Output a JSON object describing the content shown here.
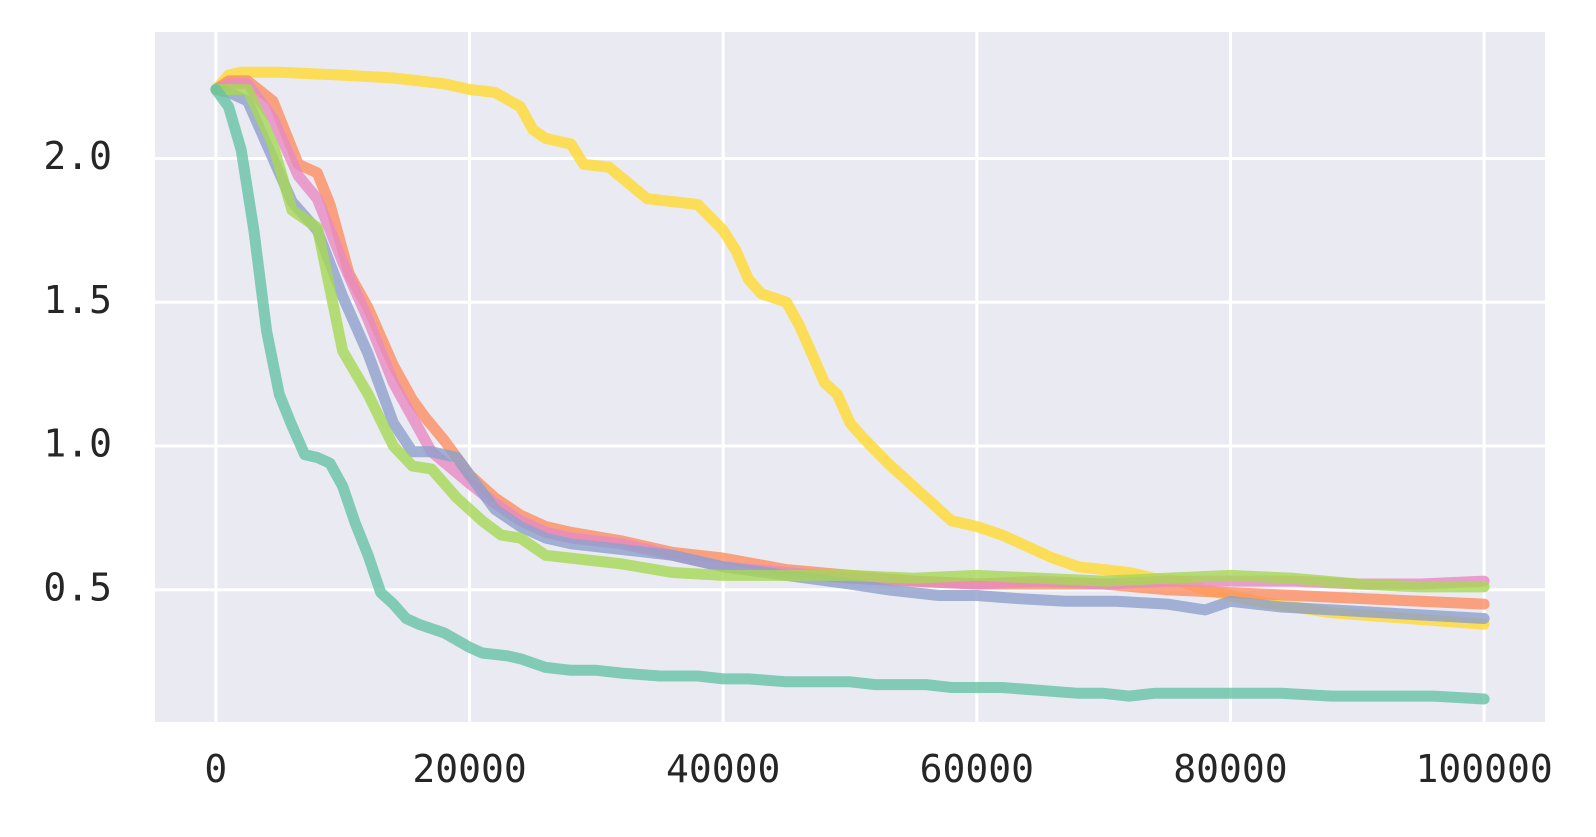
{
  "chart_data": {
    "type": "line",
    "x_ticks": [
      0,
      20000,
      40000,
      60000,
      80000,
      100000
    ],
    "x_tick_labels": [
      "0",
      "20000",
      "40000",
      "60000",
      "80000",
      "100000"
    ],
    "y_ticks": [
      0.5,
      1.0,
      1.5,
      2.0
    ],
    "y_tick_labels": [
      "0.5",
      "1.0",
      "1.5",
      "2.0"
    ],
    "xlim": [
      -4800,
      104800
    ],
    "ylim": [
      0.04,
      2.44
    ],
    "grid": true,
    "background": "#eaeaf2",
    "series": [
      {
        "color": "#ffd92f",
        "x": [
          0,
          1000,
          2000,
          5000,
          10000,
          14000,
          16000,
          18000,
          20000,
          22000,
          24000,
          25000,
          26000,
          28000,
          29000,
          31000,
          34000,
          36000,
          38000,
          40000,
          41000,
          42000,
          43000,
          45000,
          46000,
          47000,
          48000,
          49000,
          50000,
          51000,
          53000,
          55000,
          57000,
          58000,
          60000,
          62000,
          64000,
          66000,
          68000,
          70000,
          72000,
          74000,
          76000,
          78000,
          80000,
          82000,
          85000,
          88000,
          91000,
          94000,
          97000,
          100000
        ],
        "y": [
          2.24,
          2.29,
          2.3,
          2.3,
          2.29,
          2.28,
          2.27,
          2.26,
          2.24,
          2.23,
          2.18,
          2.1,
          2.07,
          2.05,
          1.98,
          1.97,
          1.86,
          1.85,
          1.84,
          1.75,
          1.68,
          1.58,
          1.53,
          1.5,
          1.42,
          1.32,
          1.22,
          1.18,
          1.08,
          1.03,
          0.94,
          0.86,
          0.78,
          0.74,
          0.72,
          0.69,
          0.65,
          0.61,
          0.58,
          0.57,
          0.56,
          0.54,
          0.53,
          0.5,
          0.48,
          0.46,
          0.44,
          0.42,
          0.41,
          0.4,
          0.39,
          0.38
        ]
      },
      {
        "color": "#fc8d62",
        "x": [
          0,
          1000,
          2500,
          4500,
          6500,
          8000,
          9000,
          10500,
          12000,
          14000,
          15500,
          16500,
          18000,
          20000,
          22000,
          24000,
          26000,
          28000,
          32000,
          36000,
          40000,
          45000,
          50000,
          55000,
          60000,
          65000,
          70000,
          75000,
          80000,
          85000,
          90000,
          95000,
          100000
        ],
        "y": [
          2.24,
          2.27,
          2.27,
          2.2,
          1.98,
          1.95,
          1.84,
          1.6,
          1.48,
          1.28,
          1.16,
          1.1,
          1.02,
          0.9,
          0.82,
          0.76,
          0.72,
          0.7,
          0.67,
          0.63,
          0.61,
          0.57,
          0.55,
          0.53,
          0.52,
          0.52,
          0.52,
          0.5,
          0.49,
          0.48,
          0.47,
          0.46,
          0.45
        ]
      },
      {
        "color": "#e78ac3",
        "x": [
          0,
          1000,
          2500,
          4500,
          6500,
          8000,
          10000,
          12000,
          14000,
          15500,
          17000,
          20000,
          22000,
          24000,
          26000,
          28000,
          32000,
          36000,
          40000,
          45000,
          50000,
          55000,
          60000,
          65000,
          70000,
          75000,
          80000,
          85000,
          90000,
          95000,
          100000
        ],
        "y": [
          2.24,
          2.26,
          2.26,
          2.14,
          1.94,
          1.86,
          1.64,
          1.44,
          1.22,
          1.1,
          0.98,
          0.87,
          0.8,
          0.74,
          0.7,
          0.68,
          0.66,
          0.62,
          0.58,
          0.56,
          0.54,
          0.53,
          0.52,
          0.53,
          0.52,
          0.53,
          0.53,
          0.53,
          0.52,
          0.52,
          0.53
        ]
      },
      {
        "color": "#8da0cb",
        "x": [
          0,
          1000,
          2500,
          4000,
          6000,
          8000,
          10000,
          12000,
          14000,
          15500,
          17000,
          19000,
          20000,
          22000,
          24000,
          26000,
          28000,
          32000,
          36000,
          40000,
          45000,
          50000,
          53000,
          57000,
          60000,
          63000,
          67000,
          71000,
          75000,
          78000,
          80000,
          84000,
          88000,
          92000,
          96000,
          100000
        ],
        "y": [
          2.24,
          2.23,
          2.2,
          2.05,
          1.85,
          1.75,
          1.52,
          1.32,
          1.08,
          0.98,
          0.98,
          0.96,
          0.9,
          0.78,
          0.72,
          0.68,
          0.66,
          0.64,
          0.62,
          0.58,
          0.55,
          0.52,
          0.5,
          0.48,
          0.48,
          0.47,
          0.46,
          0.46,
          0.45,
          0.43,
          0.46,
          0.44,
          0.43,
          0.42,
          0.41,
          0.4
        ]
      },
      {
        "color": "#a6d854",
        "x": [
          0,
          1000,
          2500,
          4500,
          6000,
          8000,
          10000,
          12000,
          14000,
          15500,
          17000,
          19000,
          21000,
          22500,
          24000,
          26000,
          28000,
          32000,
          36000,
          40000,
          45000,
          50000,
          55000,
          60000,
          65000,
          70000,
          75000,
          80000,
          85000,
          90000,
          95000,
          100000
        ],
        "y": [
          2.24,
          2.24,
          2.24,
          2.05,
          1.82,
          1.76,
          1.33,
          1.18,
          1.0,
          0.93,
          0.92,
          0.82,
          0.74,
          0.69,
          0.68,
          0.62,
          0.61,
          0.59,
          0.56,
          0.55,
          0.55,
          0.55,
          0.54,
          0.55,
          0.54,
          0.53,
          0.54,
          0.55,
          0.54,
          0.52,
          0.51,
          0.51
        ]
      },
      {
        "color": "#66c2a5",
        "x": [
          0,
          1000,
          2000,
          3000,
          4000,
          5000,
          6000,
          7000,
          8000,
          9000,
          10000,
          11000,
          12000,
          13000,
          14000,
          15000,
          16000,
          18000,
          20000,
          21000,
          23000,
          24000,
          26000,
          28000,
          30000,
          32000,
          35000,
          38000,
          40000,
          42000,
          45000,
          48000,
          50000,
          52000,
          54000,
          56000,
          58000,
          60000,
          62000,
          65000,
          68000,
          70000,
          72000,
          74000,
          76000,
          78000,
          80000,
          84000,
          88000,
          92000,
          96000,
          100000
        ],
        "y": [
          2.24,
          2.18,
          2.03,
          1.75,
          1.4,
          1.18,
          1.07,
          0.97,
          0.96,
          0.94,
          0.86,
          0.73,
          0.62,
          0.49,
          0.45,
          0.4,
          0.38,
          0.35,
          0.3,
          0.28,
          0.27,
          0.26,
          0.23,
          0.22,
          0.22,
          0.21,
          0.2,
          0.2,
          0.19,
          0.19,
          0.18,
          0.18,
          0.18,
          0.17,
          0.17,
          0.17,
          0.16,
          0.16,
          0.16,
          0.15,
          0.14,
          0.14,
          0.13,
          0.14,
          0.14,
          0.14,
          0.14,
          0.14,
          0.13,
          0.13,
          0.13,
          0.12
        ]
      }
    ]
  }
}
